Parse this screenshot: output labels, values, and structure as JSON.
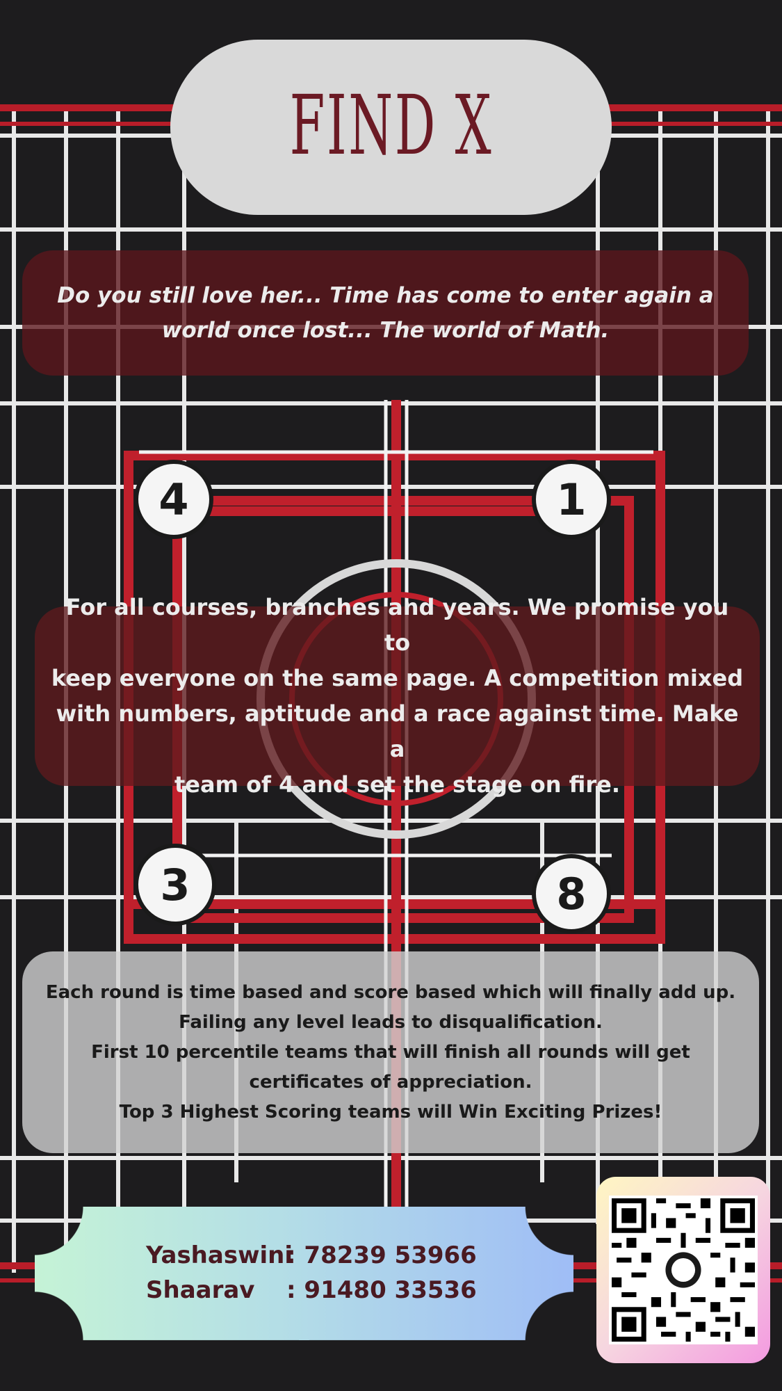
{
  "poster": {
    "title": "FIND X",
    "intro_lines": [
      "Do you still love her... Time has come to enter again a",
      "world once lost... The world of Math."
    ],
    "description_lines": [
      "For all courses, branches and years. We promise you to",
      "keep everyone on the same page. A competition mixed",
      "with numbers, aptitude and a race against time. Make a",
      "team of 4 and set the stage on fire."
    ],
    "rules_lines": [
      "Each round is time based and score based which will finally add up.",
      "Failing any level leads to disqualification.",
      "First 10 percentile teams that will finish all rounds will get",
      "certificates of appreciation.",
      "Top 3 Highest Scoring teams will Win Exciting Prizes!"
    ],
    "contacts": [
      {
        "name": "Yashaswini",
        "number": ": 78239 53966"
      },
      {
        "name": "Shaarav",
        "number": ": 91480 33536"
      }
    ],
    "maze_numbers": [
      "4",
      "1",
      "3",
      "8"
    ],
    "colors": {
      "background": "#1d1c1e",
      "accent_red": "#c0202c",
      "title_text": "#6b1a24",
      "panel_maroon": "#5c161c",
      "contact_text": "#4a1a22"
    }
  }
}
